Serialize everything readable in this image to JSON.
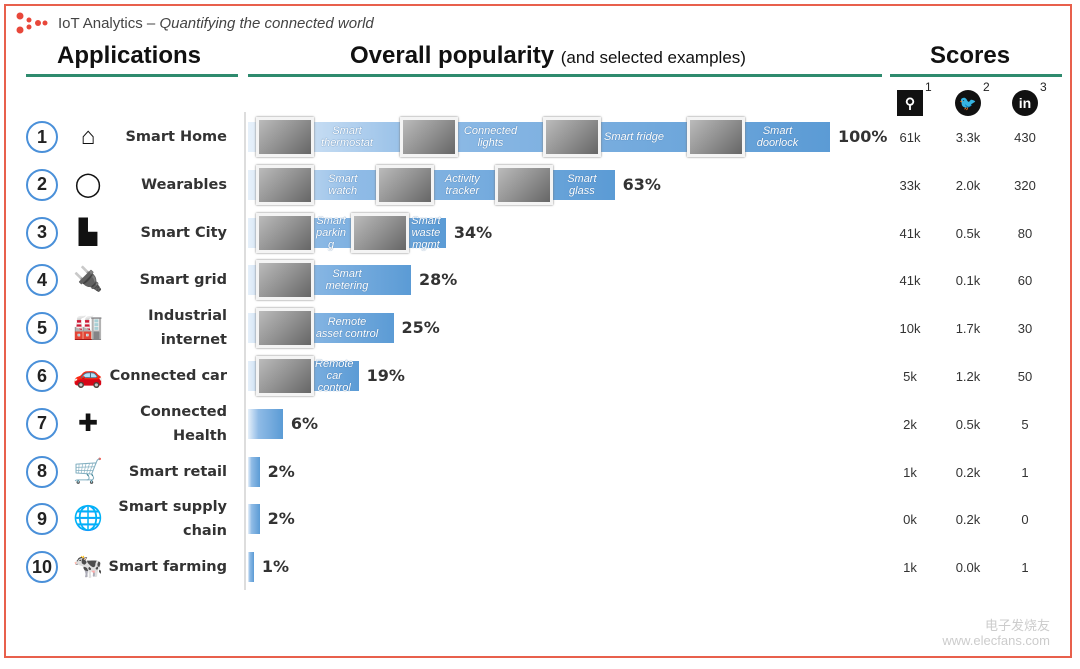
{
  "header": {
    "brand": "IoT Analytics",
    "separator": " – ",
    "tagline": "Quantifying the connected world"
  },
  "sections": {
    "applications": "Applications",
    "popularity": "Overall popularity",
    "popularity_sub": "(and selected examples)",
    "scores": "Scores"
  },
  "score_columns": [
    {
      "icon": "search-icon",
      "glyph": "⚲",
      "footnote": "1"
    },
    {
      "icon": "twitter-icon",
      "glyph": "🐦",
      "footnote": "2"
    },
    {
      "icon": "linkedin-icon",
      "glyph": "in",
      "footnote": "3"
    }
  ],
  "bar_color": "#5b9bd5",
  "chart_data": {
    "type": "bar",
    "orientation": "horizontal",
    "categories": [
      "Smart Home",
      "Wearables",
      "Smart City",
      "Smart grid",
      "Industrial internet",
      "Connected car",
      "Connected Health",
      "Smart retail",
      "Smart supply chain",
      "Smart farming"
    ],
    "values": [
      100,
      63,
      34,
      28,
      25,
      19,
      6,
      2,
      2,
      1
    ],
    "value_labels": [
      "100%",
      "63%",
      "34%",
      "28%",
      "25%",
      "19%",
      "6%",
      "2%",
      "2%",
      "1%"
    ],
    "xlim": [
      0,
      100
    ],
    "rows": [
      {
        "num": "1",
        "icon": "house-icon",
        "glyph": "⌂",
        "label": [
          "Smart Home"
        ],
        "examples": [
          "Smart thermostat",
          "Connected lights",
          "Smart fridge",
          "Smart doorlock"
        ],
        "scores": [
          "61k",
          "3.3k",
          "430"
        ]
      },
      {
        "num": "2",
        "icon": "wristband-icon",
        "glyph": "◯",
        "label": [
          "Wearables"
        ],
        "examples": [
          "Smart watch",
          "Activity tracker",
          "Smart glass"
        ],
        "scores": [
          "33k",
          "2.0k",
          "320"
        ]
      },
      {
        "num": "3",
        "icon": "city-icon",
        "glyph": "▙",
        "label": [
          "Smart City"
        ],
        "examples": [
          "Smart parking",
          "Smart waste mgmt"
        ],
        "scores": [
          "41k",
          "0.5k",
          "80"
        ]
      },
      {
        "num": "4",
        "icon": "plug-icon",
        "glyph": "🔌",
        "label": [
          "Smart grid"
        ],
        "examples": [
          "Smart metering"
        ],
        "scores": [
          "41k",
          "0.1k",
          "60"
        ]
      },
      {
        "num": "5",
        "icon": "factory-icon",
        "glyph": "🏭",
        "label": [
          "Industrial",
          "internet"
        ],
        "examples": [
          "Remote asset control"
        ],
        "scores": [
          "10k",
          "1.7k",
          "30"
        ]
      },
      {
        "num": "6",
        "icon": "car-icon",
        "glyph": "🚗",
        "label": [
          "Connected car"
        ],
        "examples": [
          "Remote car control"
        ],
        "scores": [
          "5k",
          "1.2k",
          "50"
        ]
      },
      {
        "num": "7",
        "icon": "medical-kit-icon",
        "glyph": "✚",
        "label": [
          "Connected",
          "Health"
        ],
        "examples": [],
        "scores": [
          "2k",
          "0.5k",
          "5"
        ]
      },
      {
        "num": "8",
        "icon": "shopping-cart-icon",
        "glyph": "🛒",
        "label": [
          "Smart retail"
        ],
        "examples": [],
        "scores": [
          "1k",
          "0.2k",
          "1"
        ]
      },
      {
        "num": "9",
        "icon": "globe-truck-icon",
        "glyph": "🌐",
        "label": [
          "Smart supply",
          "chain"
        ],
        "examples": [],
        "scores": [
          "0k",
          "0.2k",
          "0"
        ]
      },
      {
        "num": "10",
        "icon": "cow-icon",
        "glyph": "🐄",
        "label": [
          "Smart farming"
        ],
        "examples": [],
        "scores": [
          "1k",
          "0.0k",
          "1"
        ]
      }
    ]
  },
  "watermark": {
    "line1": "电子发烧友",
    "line2": "www.elecfans.com"
  }
}
